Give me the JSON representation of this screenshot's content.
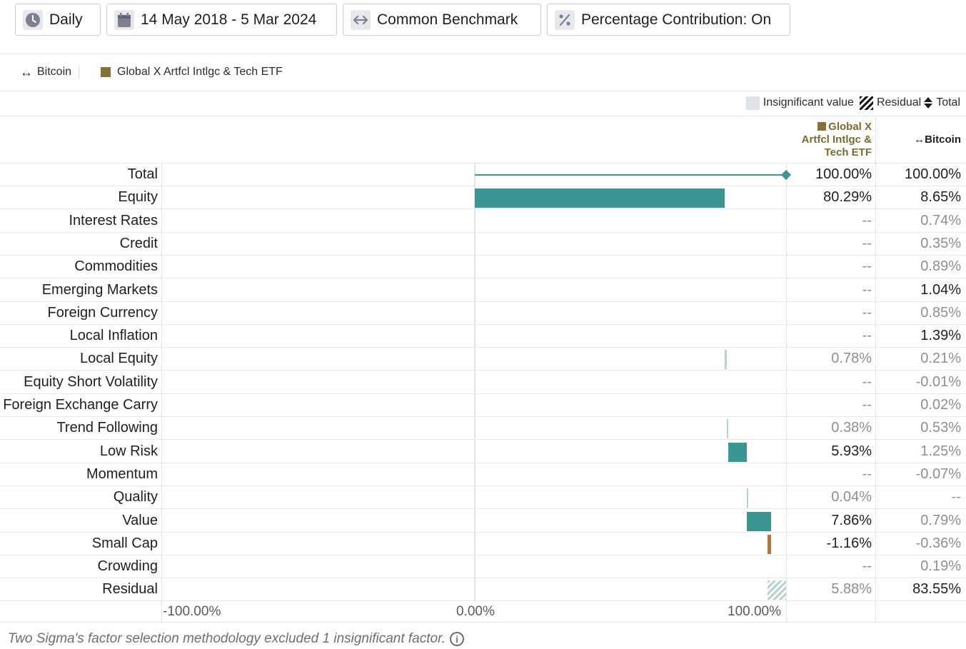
{
  "toolbar": {
    "frequency": "Daily",
    "date_range": "14 May 2018 - 5 Mar 2024",
    "benchmark": "Common Benchmark",
    "contribution": "Percentage Contribution: On"
  },
  "series_legend": {
    "benchmark_name": "Bitcoin",
    "fund_name": "Global X Artfcl Intlgc & Tech ETF",
    "fund_color": "#867135"
  },
  "chart_legend": {
    "insignificant": "Insignificant value",
    "residual": "Residual",
    "total": "Total"
  },
  "table": {
    "col_fund_lines": [
      "Global X",
      "Artfcl Intlgc &",
      "Tech ETF"
    ],
    "col_benchmark": "Bitcoin"
  },
  "colors": {
    "positive": "#3a9693",
    "negative": "#b8743a",
    "insignificant": "#b5d3d3"
  },
  "chart_data": {
    "type": "bar",
    "orientation": "horizontal",
    "xlim": [
      -100,
      100
    ],
    "x_ticks": [
      "-100.00%",
      "0.00%",
      "100.00%"
    ],
    "factors": [
      {
        "name": "Total",
        "fund": "100.00%",
        "bench": "100.00%",
        "value": 100,
        "kind": "total",
        "fund_sig": true,
        "bench_sig": true
      },
      {
        "name": "Equity",
        "fund": "80.29%",
        "bench": "8.65%",
        "value": 80.29,
        "kind": "pos",
        "fund_sig": true,
        "bench_sig": true
      },
      {
        "name": "Interest Rates",
        "fund": "--",
        "bench": "0.74%",
        "value": 0,
        "kind": "none",
        "fund_sig": false,
        "bench_sig": false
      },
      {
        "name": "Credit",
        "fund": "--",
        "bench": "0.35%",
        "value": 0,
        "kind": "none",
        "fund_sig": false,
        "bench_sig": false
      },
      {
        "name": "Commodities",
        "fund": "--",
        "bench": "0.89%",
        "value": 0,
        "kind": "none",
        "fund_sig": false,
        "bench_sig": false
      },
      {
        "name": "Emerging Markets",
        "fund": "--",
        "bench": "1.04%",
        "value": 0,
        "kind": "none",
        "fund_sig": false,
        "bench_sig": true
      },
      {
        "name": "Foreign Currency",
        "fund": "--",
        "bench": "0.85%",
        "value": 0,
        "kind": "none",
        "fund_sig": false,
        "bench_sig": false
      },
      {
        "name": "Local Inflation",
        "fund": "--",
        "bench": "1.39%",
        "value": 0,
        "kind": "none",
        "fund_sig": false,
        "bench_sig": true
      },
      {
        "name": "Local Equity",
        "fund": "0.78%",
        "bench": "0.21%",
        "value": 0.78,
        "kind": "ins",
        "fund_sig": false,
        "bench_sig": false
      },
      {
        "name": "Equity Short Volatility",
        "fund": "--",
        "bench": "-0.01%",
        "value": 0,
        "kind": "none",
        "fund_sig": false,
        "bench_sig": false
      },
      {
        "name": "Foreign Exchange Carry",
        "fund": "--",
        "bench": "0.02%",
        "value": 0,
        "kind": "none",
        "fund_sig": false,
        "bench_sig": false
      },
      {
        "name": "Trend Following",
        "fund": "0.38%",
        "bench": "0.53%",
        "value": 0.38,
        "kind": "ins",
        "fund_sig": false,
        "bench_sig": false
      },
      {
        "name": "Low Risk",
        "fund": "5.93%",
        "bench": "1.25%",
        "value": 5.93,
        "kind": "pos",
        "fund_sig": true,
        "bench_sig": false
      },
      {
        "name": "Momentum",
        "fund": "--",
        "bench": "-0.07%",
        "value": 0,
        "kind": "none",
        "fund_sig": false,
        "bench_sig": false
      },
      {
        "name": "Quality",
        "fund": "0.04%",
        "bench": "--",
        "value": 0.04,
        "kind": "ins",
        "fund_sig": false,
        "bench_sig": false
      },
      {
        "name": "Value",
        "fund": "7.86%",
        "bench": "0.79%",
        "value": 7.86,
        "kind": "pos",
        "fund_sig": true,
        "bench_sig": false
      },
      {
        "name": "Small Cap",
        "fund": "-1.16%",
        "bench": "-0.36%",
        "value": -1.16,
        "kind": "neg",
        "fund_sig": true,
        "bench_sig": false
      },
      {
        "name": "Crowding",
        "fund": "--",
        "bench": "0.19%",
        "value": 0,
        "kind": "none",
        "fund_sig": false,
        "bench_sig": false
      },
      {
        "name": "Residual",
        "fund": "5.88%",
        "bench": "83.55%",
        "value": 5.88,
        "kind": "resid",
        "fund_sig": false,
        "bench_sig": true
      }
    ]
  },
  "footnote": "Two Sigma's factor selection methodology excluded 1 insignificant factor."
}
